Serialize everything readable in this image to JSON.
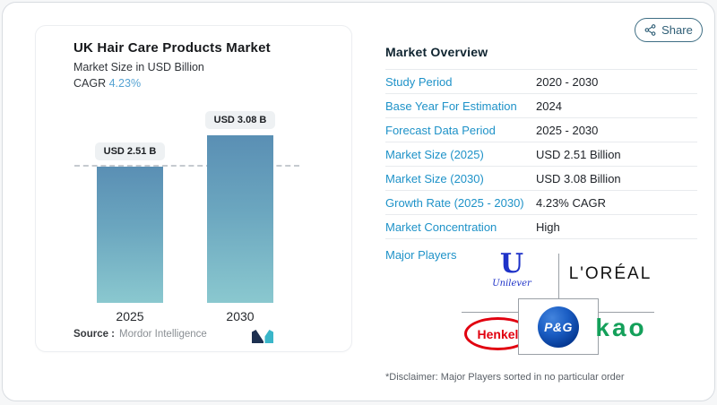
{
  "share_button": {
    "label": "Share",
    "icon": "share-nodes-icon"
  },
  "chart_panel": {
    "title": "UK Hair Care Products Market",
    "subtitle": "Market Size in USD Billion",
    "cagr_label": "CAGR",
    "cagr_value": "4.23%",
    "source_label": "Source :",
    "source_value": "Mordor Intelligence",
    "logo": "mordor-intelligence-logo"
  },
  "chart_data": {
    "type": "bar",
    "categories": [
      "2025",
      "2030"
    ],
    "values": [
      2.51,
      3.08
    ],
    "bar_labels": [
      "USD 2.51 B",
      "USD 3.08 B"
    ],
    "title": "UK Hair Care Products Market",
    "subtitle": "Market Size in USD Billion",
    "cagr": "4.23%",
    "xlabel": "",
    "ylabel": "Market Size in USD Billion",
    "ylim": [
      0,
      3.3
    ],
    "reference_line": 2.51,
    "grid": "off",
    "legend": "none",
    "bar_gradient": [
      "#5a8fb4",
      "#8ac8cf"
    ],
    "source": "Mordor Intelligence"
  },
  "overview": {
    "title": "Market Overview",
    "rows": [
      {
        "label": "Study Period",
        "value": "2020 - 2030"
      },
      {
        "label": "Base Year For Estimation",
        "value": "2024"
      },
      {
        "label": "Forecast Data Period",
        "value": "2025 - 2030"
      },
      {
        "label": "Market Size (2025)",
        "value": "USD 2.51 Billion"
      },
      {
        "label": "Market Size (2030)",
        "value": "USD 3.08 Billion"
      },
      {
        "label": "Growth Rate (2025 - 2030)",
        "value": "4.23% CAGR"
      },
      {
        "label": "Market Concentration",
        "value": "High"
      }
    ],
    "major_players_label": "Major Players",
    "players": [
      {
        "name": "Unilever",
        "glyph": "U",
        "text": "Unilever"
      },
      {
        "name": "L'Oréal",
        "text": "L'ORÉAL"
      },
      {
        "name": "Henkel",
        "text": "Henkel"
      },
      {
        "name": "P&G",
        "text": "P&G"
      },
      {
        "name": "Kao",
        "text": "kao"
      }
    ],
    "disclaimer": "*Disclaimer: Major Players sorted in no particular order"
  },
  "colors": {
    "label_blue": "#1e92c8",
    "cagr_blue": "#56a3d3",
    "bar_top": "#5a8fb4",
    "bar_bottom": "#8ac8cf",
    "share_teal": "#2f5e76",
    "unilever_blue": "#1e32c8",
    "loreal_black": "#121212",
    "henkel_red": "#e1000f",
    "pg_blue": "#003087",
    "kao_green": "#14a05a"
  }
}
